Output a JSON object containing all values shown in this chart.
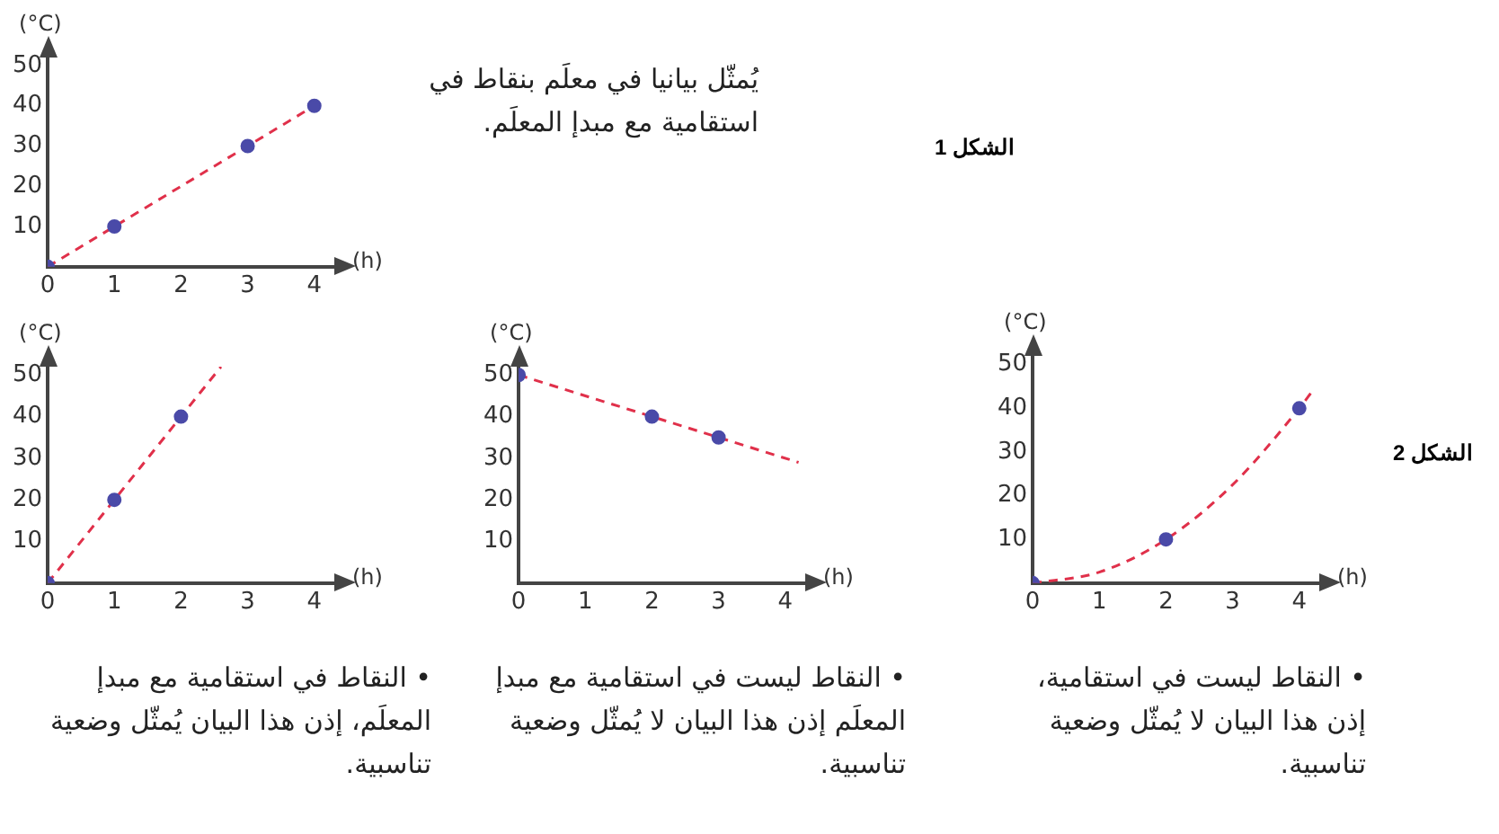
{
  "chart_data": [
    {
      "type": "scatter",
      "xlabel": "(h)",
      "ylabel": "(°C)",
      "xlim": [
        0,
        4.3
      ],
      "ylim": [
        0,
        52
      ],
      "xticks": [
        0,
        1,
        2,
        3,
        4
      ],
      "yticks": [
        10,
        20,
        30,
        40,
        50
      ],
      "grid": false,
      "legend": false,
      "series": [
        {
          "type": "scatter",
          "color": "#4a4aa8",
          "marker": "circle",
          "x": [
            0,
            1,
            3,
            4
          ],
          "values": [
            0,
            10,
            30,
            40
          ]
        },
        {
          "type": "line",
          "color": "#e0304a",
          "marker": "none",
          "line_style": "dashed",
          "x": [
            0,
            4
          ],
          "values": [
            0,
            40
          ]
        }
      ],
      "annotations": [
        "يُمثّل بيانيا في معلَم بنقاط في استقامية مع مبدإ المعلَم.",
        "الشكل 1"
      ]
    },
    {
      "type": "scatter",
      "xlabel": "(h)",
      "ylabel": "(°C)",
      "xlim": [
        0,
        4.3
      ],
      "ylim": [
        0,
        52
      ],
      "xticks": [
        0,
        1,
        2,
        3,
        4
      ],
      "yticks": [
        10,
        20,
        30,
        40,
        50
      ],
      "grid": false,
      "legend": false,
      "series": [
        {
          "type": "scatter",
          "color": "#4a4aa8",
          "marker": "circle",
          "x": [
            0,
            1,
            2
          ],
          "values": [
            0,
            20,
            40
          ]
        },
        {
          "type": "line",
          "color": "#e0304a",
          "marker": "none",
          "line_style": "dashed",
          "x": [
            0,
            2.6
          ],
          "values": [
            0,
            52
          ]
        }
      ],
      "annotations": [
        "• النقاط في استقامية مع مبدإ المعلَم، إذن هذا البيان يُمثّل وضعية تناسبية."
      ]
    },
    {
      "type": "scatter",
      "xlabel": "(h)",
      "ylabel": "(°C)",
      "xlim": [
        0,
        4.3
      ],
      "ylim": [
        0,
        52
      ],
      "xticks": [
        0,
        1,
        2,
        3,
        4
      ],
      "yticks": [
        10,
        20,
        30,
        40,
        50
      ],
      "grid": false,
      "legend": false,
      "series": [
        {
          "type": "scatter",
          "color": "#4a4aa8",
          "marker": "circle",
          "x": [
            0,
            2,
            3
          ],
          "values": [
            50,
            40,
            35
          ]
        },
        {
          "type": "line",
          "color": "#e0304a",
          "marker": "none",
          "line_style": "dashed",
          "x": [
            0,
            4.2
          ],
          "values": [
            50,
            29
          ]
        }
      ],
      "annotations": [
        "• النقاط ليست في استقامية مع مبدإ المعلَم إذن هذا البيان لا يُمثّل وضعية تناسبية."
      ]
    },
    {
      "type": "scatter",
      "xlabel": "(h)",
      "ylabel": "(°C)",
      "xlim": [
        0,
        4.3
      ],
      "ylim": [
        0,
        52
      ],
      "xticks": [
        0,
        1,
        2,
        3,
        4
      ],
      "yticks": [
        10,
        20,
        30,
        40,
        50
      ],
      "grid": false,
      "legend": false,
      "series": [
        {
          "type": "scatter",
          "color": "#4a4aa8",
          "marker": "circle",
          "x": [
            0,
            2,
            4
          ],
          "values": [
            0,
            10,
            40
          ]
        },
        {
          "type": "line",
          "color": "#e0304a",
          "marker": "none",
          "line_style": "dashed",
          "x": [
            0,
            1,
            2,
            3,
            4,
            4.2
          ],
          "values": [
            0,
            2.5,
            10,
            22.5,
            40,
            44
          ]
        }
      ],
      "annotations": [
        "• النقاط ليست في استقامية، إذن هذا البيان لا يُمثّل وضعية تناسبية.",
        "الشكل 2"
      ]
    }
  ]
}
